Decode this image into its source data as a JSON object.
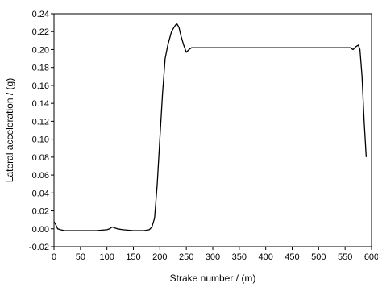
{
  "chart_data": {
    "type": "line",
    "title": "",
    "xlabel": "Strake number / (m)",
    "ylabel": "Lateral acceleration / (g)",
    "xlim": [
      0,
      600
    ],
    "ylim": [
      -0.02,
      0.24
    ],
    "x_ticks": [
      0,
      50,
      100,
      150,
      200,
      250,
      300,
      350,
      400,
      450,
      500,
      550,
      600
    ],
    "x_tick_labels": [
      "0",
      "50",
      "100",
      "150",
      "200",
      "250",
      "300",
      "350",
      "400",
      "450",
      "500",
      "550",
      "600"
    ],
    "y_ticks": [
      -0.02,
      0.0,
      0.02,
      0.04,
      0.06,
      0.08,
      0.1,
      0.12,
      0.14,
      0.16,
      0.18,
      0.2,
      0.22,
      0.24
    ],
    "y_tick_labels": [
      "-0.02",
      "0.00",
      "0.02",
      "0.04",
      "0.06",
      "0.08",
      "0.10",
      "0.12",
      "0.14",
      "0.16",
      "0.18",
      "0.20",
      "0.22",
      "0.24"
    ],
    "grid": false,
    "legend": "none",
    "line_color": "#000000",
    "series": [
      {
        "x": [
          0,
          3,
          7,
          12,
          20,
          30,
          40,
          50,
          60,
          80,
          100,
          105,
          110,
          115,
          120,
          130,
          150,
          170,
          180,
          185,
          190,
          195,
          200,
          205,
          210,
          215,
          222,
          228,
          232,
          236,
          240,
          245,
          250,
          255,
          260,
          270,
          300,
          350,
          400,
          450,
          500,
          540,
          560,
          565,
          570,
          575,
          578,
          582,
          586,
          590
        ],
        "y": [
          0.008,
          0.005,
          0.0,
          -0.001,
          -0.002,
          -0.002,
          -0.002,
          -0.002,
          -0.002,
          -0.002,
          -0.001,
          0.0,
          0.002,
          0.001,
          0.0,
          -0.001,
          -0.002,
          -0.002,
          -0.001,
          0.002,
          0.012,
          0.05,
          0.1,
          0.15,
          0.19,
          0.205,
          0.22,
          0.226,
          0.229,
          0.225,
          0.215,
          0.205,
          0.197,
          0.2,
          0.202,
          0.202,
          0.202,
          0.202,
          0.202,
          0.202,
          0.202,
          0.202,
          0.202,
          0.2,
          0.203,
          0.205,
          0.2,
          0.17,
          0.12,
          0.08
        ]
      }
    ]
  }
}
